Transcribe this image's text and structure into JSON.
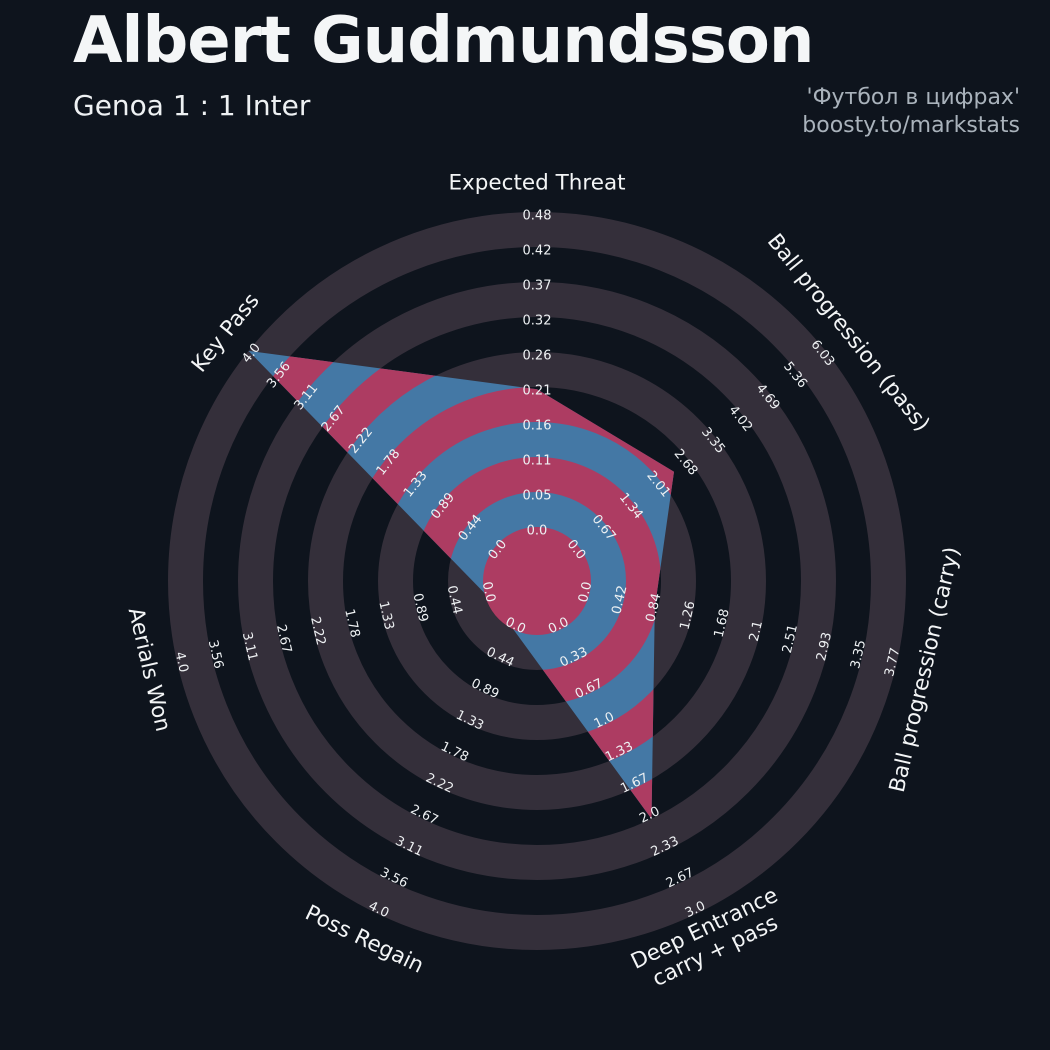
{
  "header": {
    "title": "Albert Gudmundsson",
    "subtitle": "Genoa 1 : 1 Inter",
    "watermark_line1": "'Футбол в цифрах'",
    "watermark_line2": "boosty.to/markstats"
  },
  "colors": {
    "background": "#0e141d",
    "ring_light": "#342f3a",
    "polygon_blue": "#4478a5",
    "ring_crimson": "#ad3c62",
    "tick_text": "#eef1f3",
    "axis_text": "#f3f5f6",
    "watermark_text": "#a9b2bb"
  },
  "chart_data": {
    "type": "radar",
    "title": "Albert Gudmundsson",
    "subtitle": "Genoa 1 : 1 Inter",
    "num_rings": 9,
    "axes": [
      {
        "label": "Expected Threat",
        "min": 0,
        "max": 0.48,
        "value": 0.21,
        "ticks": [
          "0.0",
          "0.05",
          "0.11",
          "0.16",
          "0.21",
          "0.26",
          "0.32",
          "0.37",
          "0.42",
          "0.48"
        ]
      },
      {
        "label": "Ball progression (pass)",
        "min": 0,
        "max": 6.03,
        "value": 2.32,
        "ticks": [
          "0.0",
          "0.67",
          "1.34",
          "2.01",
          "2.68",
          "3.35",
          "4.02",
          "4.69",
          "5.36",
          "6.03"
        ]
      },
      {
        "label": "Ball progression (carry)",
        "min": 0,
        "max": 3.77,
        "value": 0.8,
        "ticks": [
          "0.0",
          "0.42",
          "0.84",
          "1.26",
          "1.68",
          "2.1",
          "2.51",
          "2.93",
          "3.35",
          "3.77"
        ]
      },
      {
        "label": "Deep Entrance\ncarry + pass",
        "min": 0,
        "max": 3.0,
        "value": 2.0,
        "ticks": [
          "0.0",
          "0.33",
          "0.67",
          "1.0",
          "1.33",
          "1.67",
          "2.0",
          "2.33",
          "2.67",
          "3.0"
        ]
      },
      {
        "label": "Poss Regain",
        "min": 0,
        "max": 4.0,
        "value": 0.0,
        "ticks": [
          "0.0",
          "0.44",
          "0.89",
          "1.33",
          "1.78",
          "2.22",
          "2.67",
          "3.11",
          "3.56",
          "4.0"
        ]
      },
      {
        "label": "Aerials Won",
        "min": 0,
        "max": 4.0,
        "value": 0.0,
        "ticks": [
          "0.0",
          "0.44",
          "0.89",
          "1.33",
          "1.78",
          "2.22",
          "2.67",
          "3.11",
          "3.56",
          "4.0"
        ]
      },
      {
        "label": "Key Pass",
        "min": 0,
        "max": 4.0,
        "value": 4.0,
        "ticks": [
          "0.0",
          "0.44",
          "0.89",
          "1.33",
          "1.78",
          "2.22",
          "2.67",
          "3.11",
          "3.56",
          "4.0"
        ]
      }
    ]
  }
}
